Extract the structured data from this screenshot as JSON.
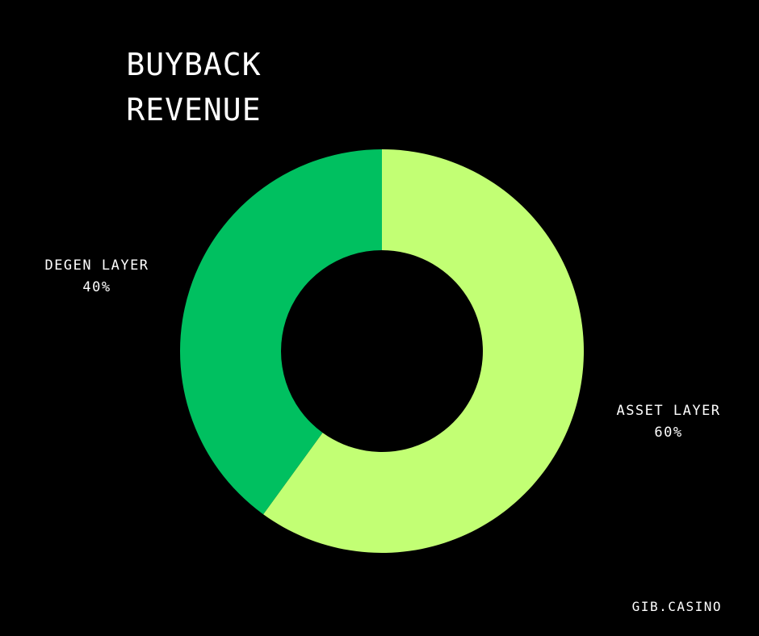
{
  "chart_data": {
    "type": "pie",
    "variant": "donut",
    "title_lines": [
      "BUYBACK",
      "REVENUE"
    ],
    "slices": [
      {
        "label": "ASSET LAYER",
        "percent_text": "60%",
        "value": 60,
        "color": "#c2ff74"
      },
      {
        "label": "DEGEN LAYER",
        "percent_text": "40%",
        "value": 40,
        "color": "#00c060"
      }
    ]
  },
  "footer": {
    "site": "GIB.CASINO"
  },
  "colors": {
    "background": "#000000",
    "text": "#ffffff"
  }
}
